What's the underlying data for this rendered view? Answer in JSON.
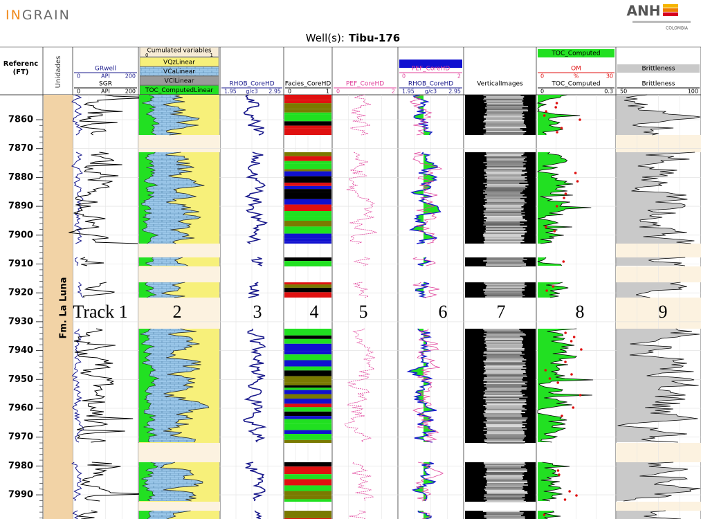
{
  "header": {
    "logo_accent": "IN",
    "logo_rest": "GRAIN",
    "well_label": "Well(s):",
    "well_name": "Tibu-176",
    "agency": "ANH",
    "agency_sub": "COLOMBIA"
  },
  "columns": {
    "depth_title": "Referenc",
    "depth_unit": "(FT)",
    "units_title": "Unidades"
  },
  "formation": "Fm. La Luna",
  "tracks": [
    {
      "curves": [
        {
          "name": "GRwell",
          "min": "0",
          "unit": "API",
          "max": "200"
        },
        {
          "name": "SGR",
          "min": "0",
          "unit": "API",
          "max": "200"
        }
      ]
    },
    {
      "title": "Cumulated variables",
      "min": "0",
      "max": "1",
      "curves": [
        "VQzLinear",
        "VCaLinear",
        "VClLinear",
        "TOC_ComputedLinear"
      ]
    },
    {
      "curves": [
        {
          "name": "RHOB_CoreHD",
          "min": "1.95",
          "unit": "g/c3",
          "max": "2.95"
        }
      ]
    },
    {
      "curves": [
        {
          "name": "Facies_CoreHD",
          "min": "0",
          "max": "1"
        }
      ]
    },
    {
      "curves": [
        {
          "name": "PEF_CoreHD",
          "min": "0",
          "max": "2"
        }
      ]
    },
    {
      "curves": [
        {
          "name": "PEF_CoreHD",
          "min": "0",
          "max": "2"
        },
        {
          "name": "RHOB_CoreHD",
          "min": "1.95",
          "unit": "g/c3",
          "max": "2.95"
        }
      ]
    },
    {
      "curves": [
        {
          "name": "VerticalImages"
        }
      ]
    },
    {
      "curves": [
        {
          "name": "TOC_Computed"
        },
        {
          "name": "OM",
          "min": "0",
          "unit": "%",
          "max": "30"
        },
        {
          "name": "TOC_Computed",
          "min": "0",
          "max": "0.3"
        }
      ]
    },
    {
      "curves": [
        {
          "name": "Brittleness"
        },
        {
          "name": "Brittleness",
          "min": "50",
          "max": "100"
        }
      ]
    }
  ],
  "track_labels": [
    "Track 1",
    "2",
    "3",
    "4",
    "5",
    "6",
    "7",
    "8",
    "9"
  ],
  "depth_ticks": [
    "7860",
    "7870",
    "7880",
    "7890",
    "7900",
    "7910",
    "7920",
    "7930",
    "7940",
    "7950",
    "7960",
    "7970",
    "7980",
    "7990"
  ]
}
